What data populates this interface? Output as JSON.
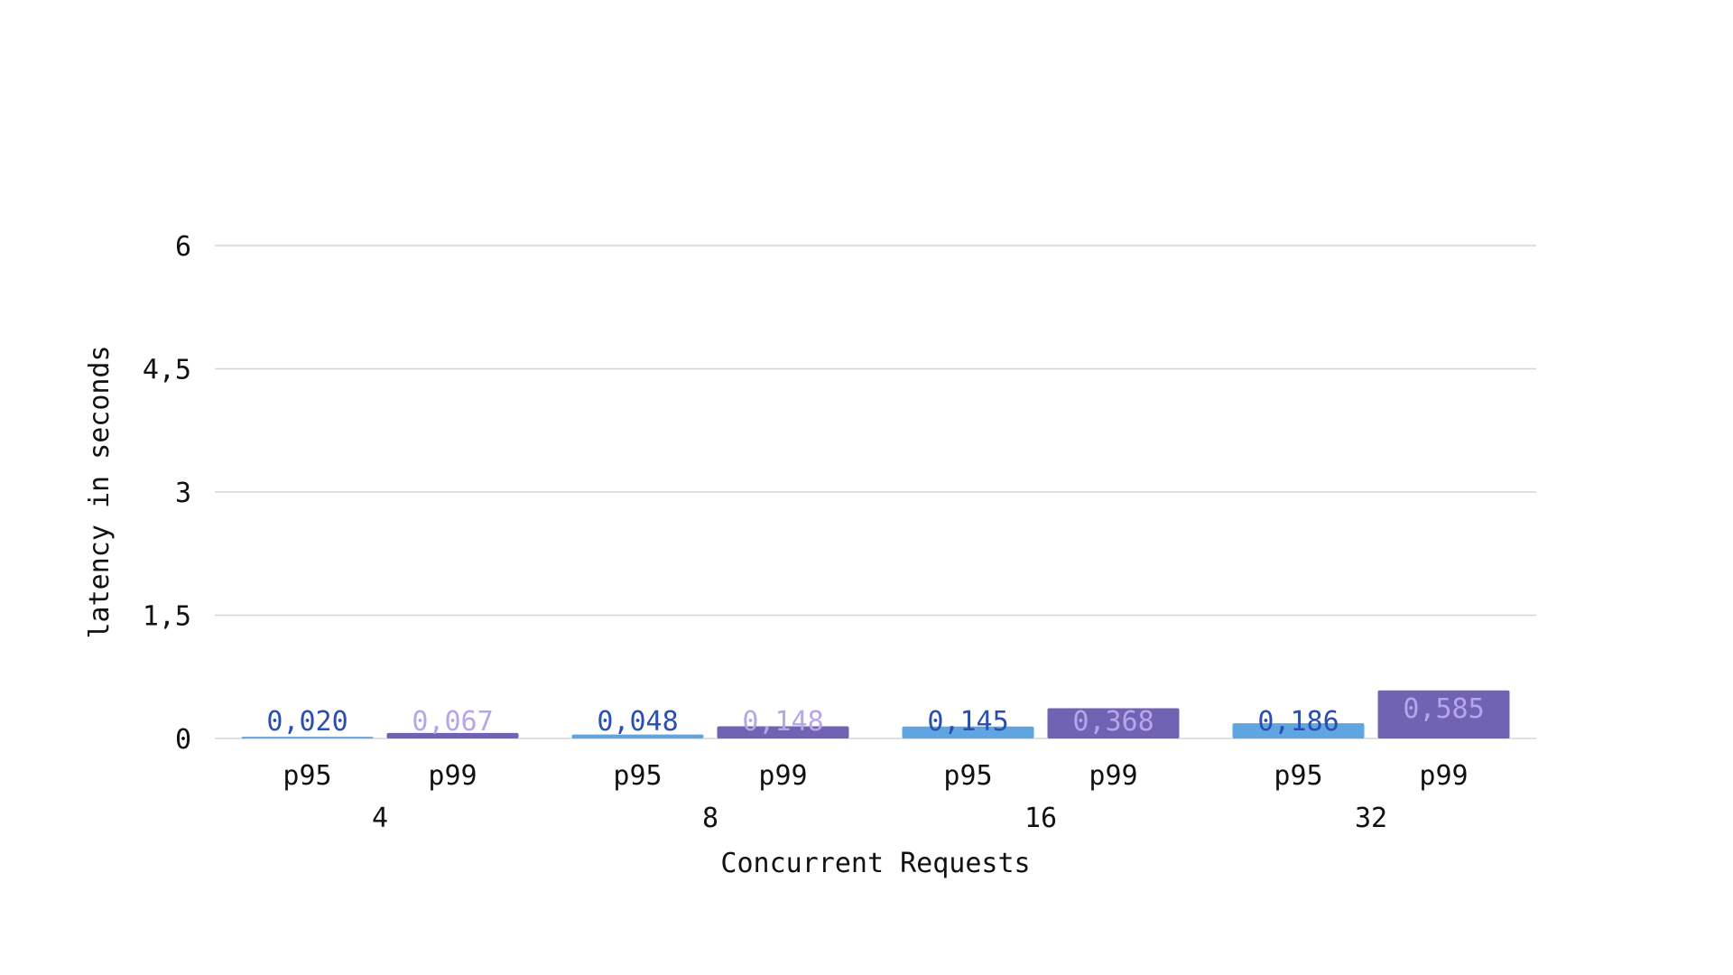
{
  "chart_data": {
    "type": "bar",
    "title": "",
    "xlabel": "Concurrent Requests",
    "ylabel": "latency in seconds",
    "ylim": [
      0,
      6
    ],
    "yticks": [
      0,
      1.5,
      3,
      4.5,
      6
    ],
    "ytick_labels": [
      "0",
      "1,5",
      "3",
      "4,5",
      "6"
    ],
    "grid": true,
    "categories": [
      "4",
      "8",
      "16",
      "32"
    ],
    "subcategories": [
      "p95",
      "p99"
    ],
    "series": [
      {
        "name": "p95",
        "color": "#5fa5e2",
        "label_color": "#2a4fae",
        "values": [
          0.02,
          0.048,
          0.145,
          0.186
        ],
        "value_labels": [
          "0,020",
          "0,048",
          "0,145",
          "0,186"
        ]
      },
      {
        "name": "p99",
        "color": "#7063b3",
        "label_color": "#b7a5ec",
        "values": [
          0.067,
          0.148,
          0.368,
          0.585
        ],
        "value_labels": [
          "0,067",
          "0,148",
          "0,368",
          "0,585"
        ]
      }
    ]
  }
}
